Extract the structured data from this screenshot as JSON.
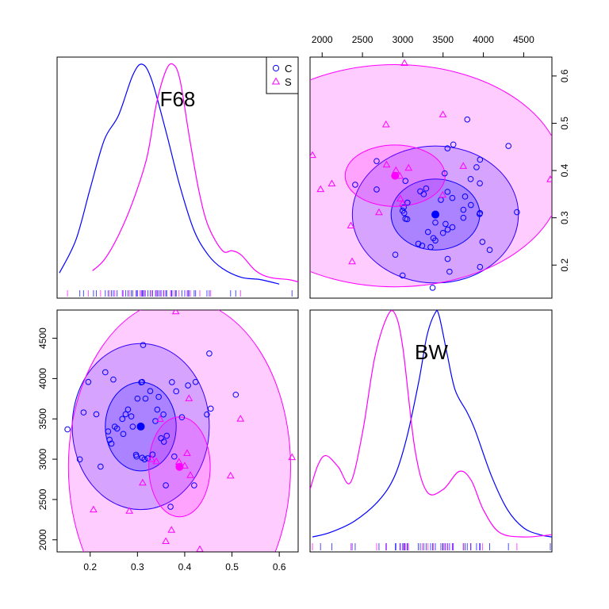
{
  "colors": {
    "C": "#0000ff",
    "S": "#ff00ff"
  },
  "chart_data": {
    "type": "scatter",
    "variables": [
      "F68",
      "BW"
    ],
    "legend": {
      "position": "top-right",
      "entries": [
        {
          "label": "C",
          "marker": "circle"
        },
        {
          "label": "S",
          "marker": "triangle"
        }
      ]
    },
    "axes": {
      "F68": {
        "range": [
          0.13,
          0.64
        ],
        "ticks": [
          0.2,
          0.3,
          0.4,
          0.5,
          0.6
        ],
        "tick_labels": [
          "0.2",
          "0.3",
          "0.4",
          "0.5",
          "0.6"
        ]
      },
      "BW": {
        "range": [
          1850,
          4850
        ],
        "ticks": [
          2000,
          2500,
          3000,
          3500,
          4000,
          4500
        ],
        "tick_labels": [
          "2000",
          "2500",
          "3000",
          "3500",
          "4000",
          "4500"
        ]
      }
    },
    "groups": [
      {
        "name": "C",
        "mean": {
          "F68": 0.307,
          "BW": 3405
        },
        "ellipses": [
          {
            "level": "inner",
            "cx": 0.307,
            "cy": 3405,
            "rx": 0.075,
            "ry": 550
          },
          {
            "level": "outer",
            "cx": 0.307,
            "cy": 3405,
            "rx": 0.145,
            "ry": 1030
          }
        ],
        "points": [
          [
            0.152,
            3370
          ],
          [
            0.178,
            2998
          ],
          [
            0.186,
            3580
          ],
          [
            0.196,
            3958
          ],
          [
            0.213,
            3557
          ],
          [
            0.222,
            2908
          ],
          [
            0.232,
            4078
          ],
          [
            0.238,
            3345
          ],
          [
            0.241,
            3241
          ],
          [
            0.245,
            3193
          ],
          [
            0.249,
            3988
          ],
          [
            0.252,
            3404
          ],
          [
            0.257,
            3380
          ],
          [
            0.268,
            3499
          ],
          [
            0.27,
            3313
          ],
          [
            0.275,
            3557
          ],
          [
            0.28,
            3616
          ],
          [
            0.287,
            3531
          ],
          [
            0.29,
            3404
          ],
          [
            0.297,
            3055
          ],
          [
            0.298,
            3033
          ],
          [
            0.3,
            3752
          ],
          [
            0.305,
            3404
          ],
          [
            0.308,
            3953
          ],
          [
            0.31,
            3958
          ],
          [
            0.31,
            3018
          ],
          [
            0.312,
            4416
          ],
          [
            0.315,
            2998
          ],
          [
            0.317,
            3752
          ],
          [
            0.322,
            3012
          ],
          [
            0.327,
            3845
          ],
          [
            0.332,
            3058
          ],
          [
            0.338,
            3473
          ],
          [
            0.342,
            3615
          ],
          [
            0.345,
            3773
          ],
          [
            0.35,
            3260
          ],
          [
            0.355,
            3555
          ],
          [
            0.356,
            3217
          ],
          [
            0.36,
            2676
          ],
          [
            0.362,
            3290
          ],
          [
            0.37,
            2410
          ],
          [
            0.373,
            3956
          ],
          [
            0.378,
            3033
          ],
          [
            0.382,
            3842
          ],
          [
            0.394,
            3520
          ],
          [
            0.407,
            3915
          ],
          [
            0.42,
            2676
          ],
          [
            0.423,
            3958
          ],
          [
            0.447,
            3555
          ],
          [
            0.452,
            4311
          ],
          [
            0.455,
            3627
          ],
          [
            0.508,
            3800
          ]
        ],
        "density_F68": {
          "x": [
            0.135,
            0.17,
            0.2,
            0.23,
            0.26,
            0.29,
            0.31,
            0.33,
            0.36,
            0.39,
            0.42,
            0.45,
            0.48,
            0.52,
            0.56,
            0.6
          ],
          "y": [
            0.06,
            0.21,
            0.44,
            0.66,
            0.77,
            0.95,
            1.0,
            0.93,
            0.7,
            0.45,
            0.25,
            0.14,
            0.08,
            0.04,
            0.03,
            0.01
          ]
        },
        "density_BW": {
          "x": [
            1880,
            2100,
            2400,
            2700,
            2900,
            3050,
            3200,
            3300,
            3400,
            3450,
            3550,
            3650,
            3800,
            3900,
            4100,
            4300,
            4500,
            4700,
            4850
          ],
          "y": [
            0.01,
            0.03,
            0.08,
            0.17,
            0.28,
            0.45,
            0.7,
            0.9,
            1.0,
            0.99,
            0.82,
            0.66,
            0.56,
            0.48,
            0.28,
            0.13,
            0.05,
            0.02,
            0.01
          ]
        }
      },
      {
        "name": "S",
        "mean": {
          "F68": 0.389,
          "BW": 2905
        },
        "ellipses": [
          {
            "level": "inner",
            "cx": 0.389,
            "cy": 2905,
            "rx": 0.065,
            "ry": 620
          },
          {
            "level": "outer",
            "cx": 0.389,
            "cy": 2905,
            "rx": 0.235,
            "ry": 2080
          }
        ],
        "points": [
          [
            0.207,
            2372
          ],
          [
            0.283,
            2356
          ],
          [
            0.311,
            2705
          ],
          [
            0.33,
            2998
          ],
          [
            0.34,
            2970
          ],
          [
            0.348,
            3495
          ],
          [
            0.36,
            1980
          ],
          [
            0.372,
            2120
          ],
          [
            0.381,
            4830
          ],
          [
            0.388,
            2964
          ],
          [
            0.4,
            2915
          ],
          [
            0.405,
            3072
          ],
          [
            0.409,
            3751
          ],
          [
            0.412,
            2799
          ],
          [
            0.432,
            1880
          ],
          [
            0.497,
            2792
          ],
          [
            0.518,
            3498
          ],
          [
            0.627,
            3021
          ]
        ],
        "density_F68": {
          "x": [
            0.205,
            0.23,
            0.26,
            0.29,
            0.32,
            0.34,
            0.36,
            0.375,
            0.39,
            0.41,
            0.43,
            0.45,
            0.48,
            0.5,
            0.52,
            0.55,
            0.58,
            0.62,
            0.64
          ],
          "y": [
            0.07,
            0.12,
            0.23,
            0.38,
            0.58,
            0.82,
            0.97,
            1.0,
            0.93,
            0.67,
            0.43,
            0.27,
            0.16,
            0.16,
            0.14,
            0.07,
            0.04,
            0.03,
            0.02
          ]
        },
        "density_BW": {
          "x": [
            1850,
            1950,
            2050,
            2200,
            2350,
            2500,
            2650,
            2800,
            2900,
            3000,
            3150,
            3300,
            3500,
            3700,
            3850,
            4000,
            4200,
            4500,
            4850
          ],
          "y": [
            0.22,
            0.33,
            0.37,
            0.32,
            0.25,
            0.47,
            0.8,
            0.98,
            1.0,
            0.85,
            0.4,
            0.21,
            0.22,
            0.3,
            0.26,
            0.13,
            0.03,
            0.01,
            0.02
          ]
        }
      }
    ],
    "rugs": {
      "F68": [
        0.152,
        0.178,
        0.186,
        0.196,
        0.207,
        0.213,
        0.222,
        0.232,
        0.238,
        0.241,
        0.245,
        0.249,
        0.252,
        0.257,
        0.268,
        0.27,
        0.275,
        0.28,
        0.283,
        0.287,
        0.29,
        0.297,
        0.298,
        0.3,
        0.305,
        0.308,
        0.31,
        0.311,
        0.312,
        0.315,
        0.317,
        0.322,
        0.327,
        0.33,
        0.332,
        0.338,
        0.34,
        0.342,
        0.345,
        0.348,
        0.35,
        0.355,
        0.356,
        0.36,
        0.362,
        0.37,
        0.372,
        0.373,
        0.378,
        0.381,
        0.382,
        0.388,
        0.394,
        0.4,
        0.405,
        0.407,
        0.409,
        0.412,
        0.42,
        0.423,
        0.432,
        0.447,
        0.452,
        0.455,
        0.497,
        0.508,
        0.518,
        0.627
      ],
      "BW": [
        1880,
        1980,
        2120,
        2356,
        2372,
        2410,
        2676,
        2705,
        2792,
        2799,
        2908,
        2915,
        2964,
        2970,
        2998,
        3012,
        3018,
        3021,
        3033,
        3055,
        3058,
        3072,
        3193,
        3217,
        3241,
        3260,
        3290,
        3313,
        3345,
        3370,
        3380,
        3404,
        3473,
        3495,
        3498,
        3499,
        3520,
        3531,
        3555,
        3557,
        3580,
        3615,
        3616,
        3627,
        3751,
        3752,
        3773,
        3800,
        3842,
        3845,
        3915,
        3953,
        3956,
        3958,
        3988,
        4078,
        4311,
        4416,
        4830
      ]
    }
  }
}
